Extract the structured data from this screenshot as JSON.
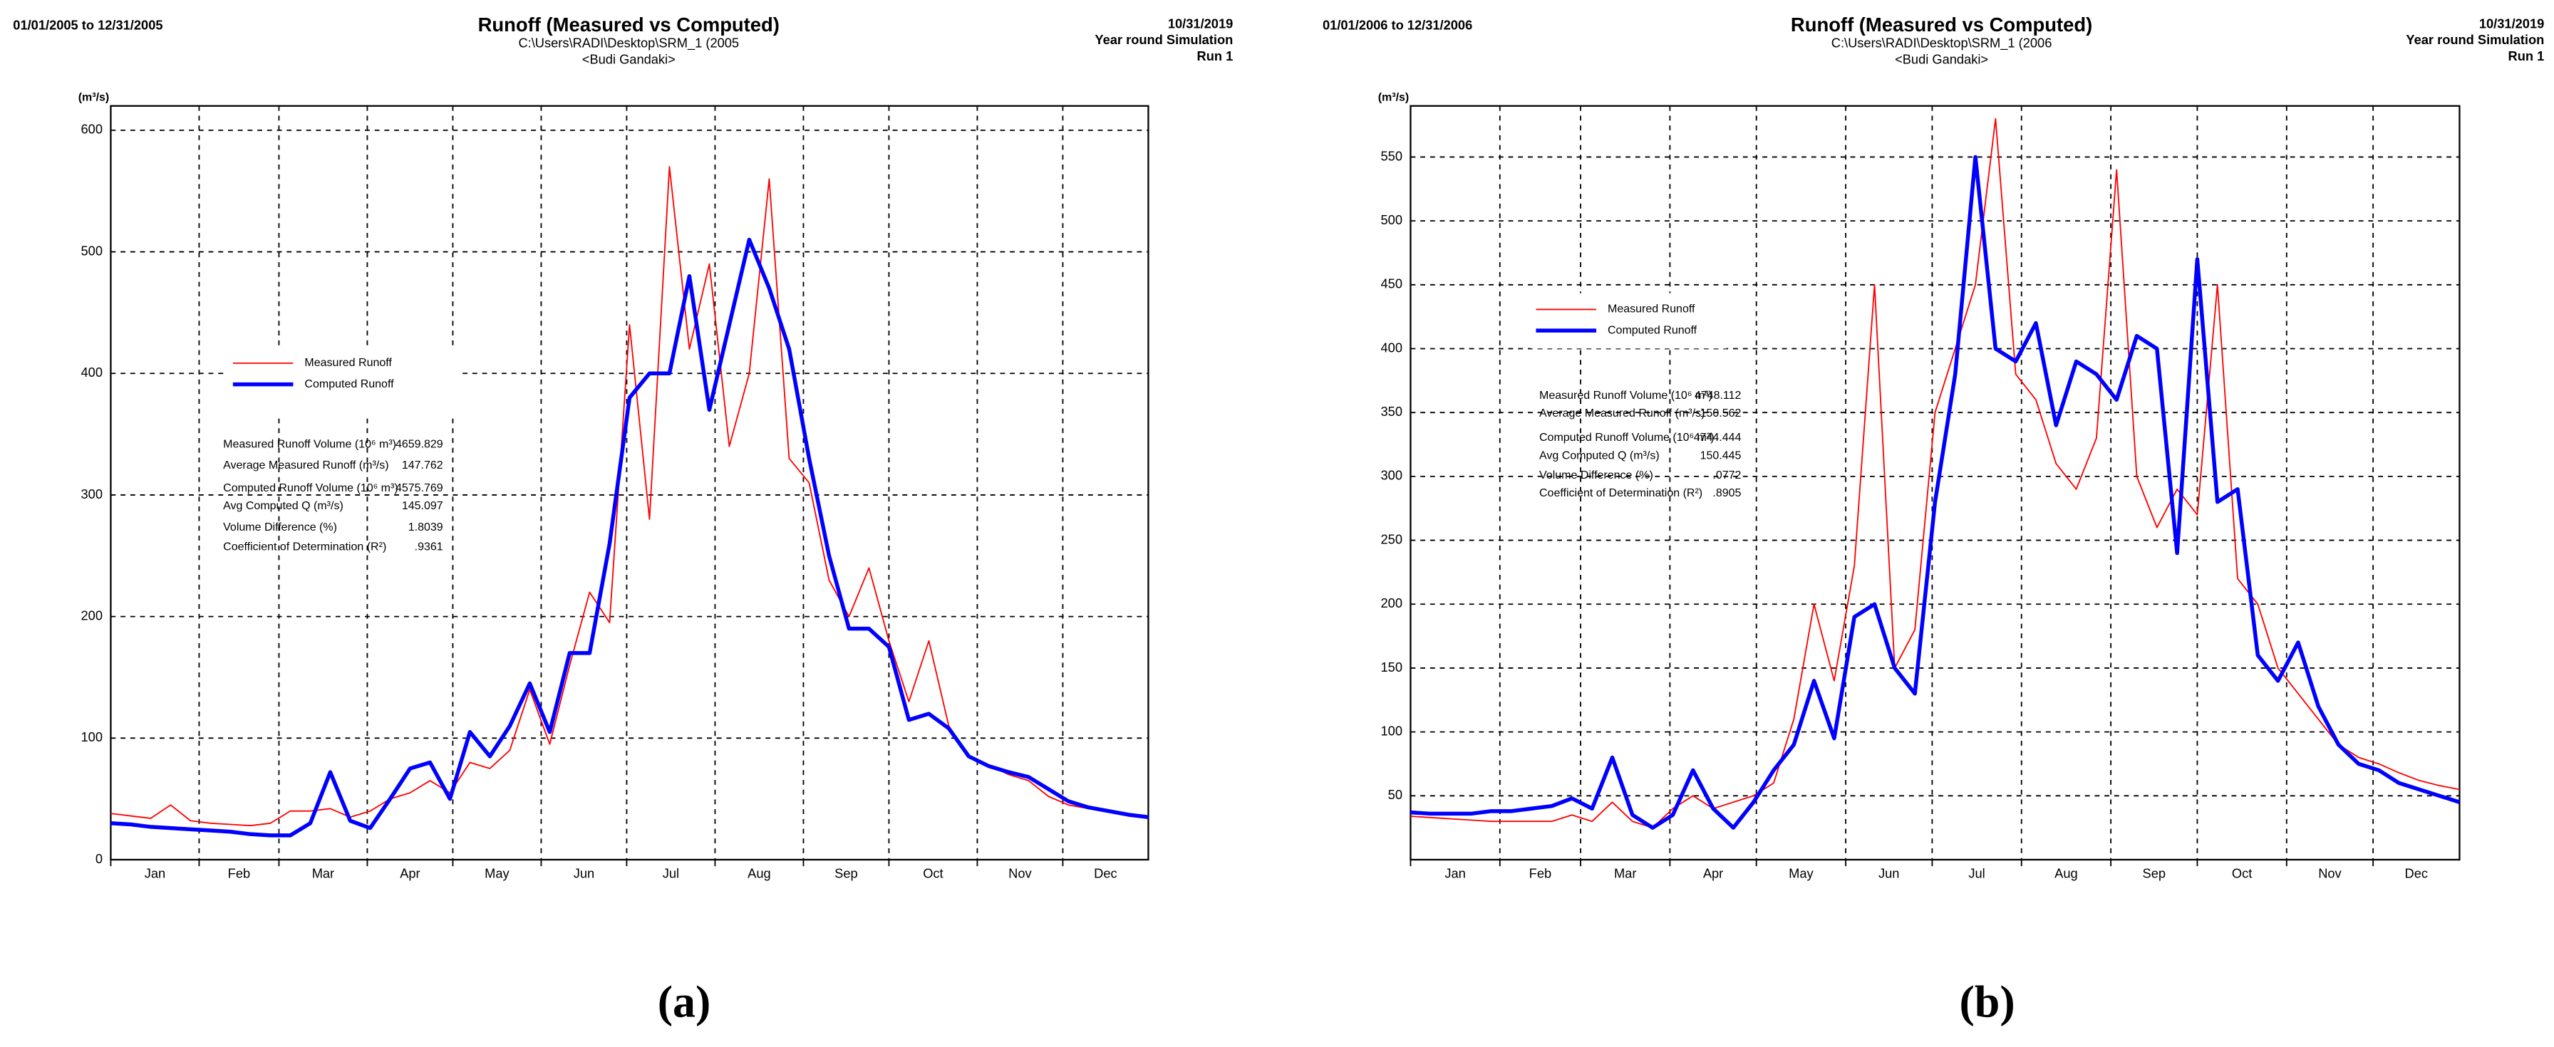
{
  "chart_data": [
    {
      "type": "line",
      "panel_label": "(a)",
      "date_range": "01/01/2005 to 12/31/2005",
      "title": "Runoff (Measured vs Computed)",
      "path": "C:\\Users\\RADI\\Desktop\\SRM_1 (2005",
      "basin": "<Budi Gandaki>",
      "run_date": "10/31/2019",
      "simulation": "Year round Simulation",
      "run": "Run 1",
      "y_label": "(m³/s)",
      "grid": true,
      "x": [
        1,
        8,
        15,
        22,
        29,
        36,
        43,
        50,
        57,
        64,
        71,
        78,
        85,
        92,
        99,
        106,
        113,
        120,
        127,
        134,
        141,
        148,
        155,
        162,
        169,
        176,
        183,
        190,
        197,
        204,
        211,
        218,
        225,
        232,
        239,
        246,
        253,
        260,
        267,
        274,
        281,
        288,
        295,
        302,
        309,
        316,
        323,
        330,
        337,
        344,
        351,
        358,
        365
      ],
      "xlim": [
        1,
        365
      ],
      "xticks": [
        {
          "value": 1,
          "label": "Jan"
        },
        {
          "value": 32,
          "label": "Feb"
        },
        {
          "value": 60,
          "label": "Mar"
        },
        {
          "value": 91,
          "label": "Apr"
        },
        {
          "value": 121,
          "label": "May"
        },
        {
          "value": 152,
          "label": "Jun"
        },
        {
          "value": 182,
          "label": "Jul"
        },
        {
          "value": 213,
          "label": "Aug"
        },
        {
          "value": 244,
          "label": "Sep"
        },
        {
          "value": 274,
          "label": "Oct"
        },
        {
          "value": 305,
          "label": "Nov"
        },
        {
          "value": 335,
          "label": "Dec"
        }
      ],
      "ylim": [
        0,
        620
      ],
      "yticks": [
        0,
        100,
        200,
        300,
        400,
        500,
        600
      ],
      "series": [
        {
          "name": "Measured Runoff",
          "color": "#ff0000",
          "values": [
            38,
            36,
            34,
            45,
            32,
            30,
            29,
            28,
            30,
            40,
            40,
            42,
            35,
            40,
            50,
            55,
            65,
            55,
            80,
            75,
            90,
            140,
            95,
            160,
            220,
            195,
            440,
            280,
            570,
            420,
            490,
            340,
            400,
            560,
            330,
            310,
            230,
            200,
            240,
            180,
            130,
            180,
            110,
            85,
            78,
            70,
            65,
            52,
            45,
            42,
            40,
            36,
            34
          ]
        },
        {
          "name": "Computed Runoff",
          "color": "#0000ff",
          "values": [
            30,
            29,
            27,
            26,
            25,
            24,
            23,
            21,
            20,
            20,
            30,
            72,
            32,
            26,
            50,
            75,
            80,
            50,
            105,
            85,
            110,
            145,
            105,
            170,
            170,
            260,
            380,
            400,
            400,
            480,
            370,
            440,
            510,
            470,
            420,
            330,
            250,
            190,
            190,
            175,
            115,
            120,
            108,
            85,
            77,
            72,
            68,
            58,
            48,
            43,
            40,
            37,
            35
          ]
        }
      ],
      "stats": [
        {
          "label": "Measured Runoff Volume (10⁶ m³)",
          "value": "4659.829",
          "color": "#ff0000"
        },
        {
          "label": "Average Measured Runoff  (m³/s)",
          "value": "147.762",
          "color": "#ff0000"
        },
        {
          "label": "Computed Runoff Volume (10⁶ m³)",
          "value": "4575.769",
          "color": "#0000ff"
        },
        {
          "label": "Avg Computed Q   (m³/s)",
          "value": "145.097",
          "color": "#0000ff"
        },
        {
          "label": "Volume Difference (%)",
          "value": "1.8039",
          "color": "#000000"
        },
        {
          "label": "Coefficient of Determination (R²)",
          "value": ".9361",
          "color": "#000000"
        }
      ]
    },
    {
      "type": "line",
      "panel_label": "(b)",
      "date_range": "01/01/2006 to 12/31/2006",
      "title": "Runoff (Measured vs Computed)",
      "path": "C:\\Users\\RADI\\Desktop\\SRM_1 (2006",
      "basin": "<Budi Gandaki>",
      "run_date": "10/31/2019",
      "simulation": "Year round Simulation",
      "run": "Run 1",
      "y_label": "(m³/s)",
      "grid": true,
      "x": [
        1,
        8,
        15,
        22,
        29,
        36,
        43,
        50,
        57,
        64,
        71,
        78,
        85,
        92,
        99,
        106,
        113,
        120,
        127,
        134,
        141,
        148,
        155,
        162,
        169,
        176,
        183,
        190,
        197,
        204,
        211,
        218,
        225,
        232,
        239,
        246,
        253,
        260,
        267,
        274,
        281,
        288,
        295,
        302,
        309,
        316,
        323,
        330,
        337,
        344,
        351,
        358,
        365
      ],
      "xlim": [
        1,
        365
      ],
      "xticks": [
        {
          "value": 1,
          "label": "Jan"
        },
        {
          "value": 32,
          "label": "Feb"
        },
        {
          "value": 60,
          "label": "Mar"
        },
        {
          "value": 91,
          "label": "Apr"
        },
        {
          "value": 121,
          "label": "May"
        },
        {
          "value": 152,
          "label": "Jun"
        },
        {
          "value": 182,
          "label": "Jul"
        },
        {
          "value": 213,
          "label": "Aug"
        },
        {
          "value": 244,
          "label": "Sep"
        },
        {
          "value": 274,
          "label": "Oct"
        },
        {
          "value": 305,
          "label": "Nov"
        },
        {
          "value": 335,
          "label": "Dec"
        }
      ],
      "ylim": [
        0,
        590
      ],
      "yticks": [
        50,
        100,
        150,
        200,
        250,
        300,
        350,
        400,
        450,
        500,
        550
      ],
      "series": [
        {
          "name": "Measured Runoff",
          "color": "#ff0000",
          "values": [
            34,
            33,
            32,
            31,
            30,
            30,
            30,
            30,
            35,
            30,
            45,
            30,
            25,
            40,
            50,
            40,
            45,
            50,
            60,
            110,
            200,
            140,
            230,
            450,
            150,
            180,
            350,
            400,
            450,
            580,
            380,
            360,
            310,
            290,
            330,
            540,
            300,
            260,
            290,
            270,
            450,
            220,
            200,
            150,
            130,
            110,
            90,
            80,
            75,
            68,
            62,
            58,
            55
          ]
        },
        {
          "name": "Computed Runoff",
          "color": "#0000ff",
          "values": [
            37,
            36,
            36,
            36,
            38,
            38,
            40,
            42,
            48,
            40,
            80,
            35,
            25,
            35,
            70,
            40,
            25,
            45,
            70,
            90,
            140,
            95,
            190,
            200,
            150,
            130,
            280,
            380,
            550,
            400,
            390,
            420,
            340,
            390,
            380,
            360,
            410,
            400,
            240,
            470,
            280,
            290,
            160,
            140,
            170,
            120,
            90,
            75,
            70,
            60,
            55,
            50,
            45
          ]
        }
      ],
      "stats": [
        {
          "label": "Measured Runoff Volume (10⁶ m³)",
          "value": "4748.112",
          "color": "#ff0000"
        },
        {
          "label": "Average Measured Runoff  (m³/s)",
          "value": "150.562",
          "color": "#ff0000"
        },
        {
          "label": "Computed Runoff Volume (10⁶ m³)",
          "value": "4744.444",
          "color": "#0000ff"
        },
        {
          "label": "Avg Computed Q   (m³/s)",
          "value": "150.445",
          "color": "#0000ff"
        },
        {
          "label": "Volume Difference (%)",
          "value": ".0772",
          "color": "#000000"
        },
        {
          "label": "Coefficient of Determination (R²)",
          "value": ".8905",
          "color": "#000000"
        }
      ]
    }
  ]
}
